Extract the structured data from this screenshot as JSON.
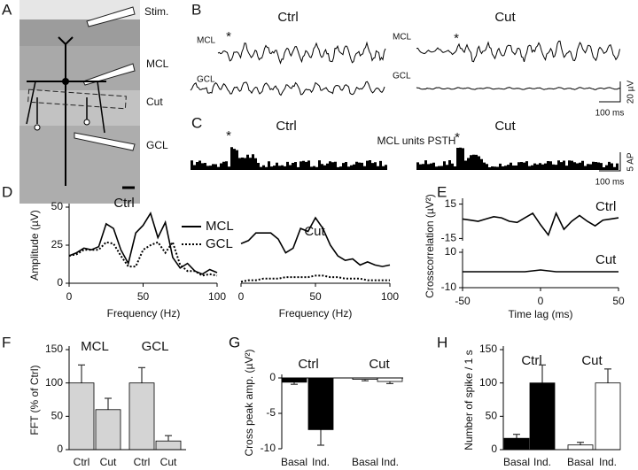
{
  "figure": {
    "panel_letters": [
      "A",
      "B",
      "C",
      "D",
      "E",
      "F",
      "G",
      "H"
    ],
    "image_labels": [
      "Stim.",
      "MCL",
      "Cut",
      "GCL"
    ],
    "b": {
      "conditions": [
        "Ctrl",
        "Cut"
      ],
      "trace_labels": [
        "MCL",
        "GCL",
        "MCL",
        "GCL"
      ],
      "asterisk": "*",
      "scale_v": "20 µV",
      "scale_t": "100 ms"
    },
    "c": {
      "conditions": [
        "Ctrl",
        "Cut"
      ],
      "title": "MCL units PSTH",
      "asterisk": "*",
      "scale_v": "5 AP",
      "scale_t": "100 ms"
    }
  },
  "chart_data": [
    {
      "type": "line",
      "title": "Ctrl",
      "x_label": "Frequency (Hz)",
      "y_label": "Amplitude (µV)",
      "x": [
        0,
        5,
        10,
        15,
        20,
        25,
        30,
        35,
        40,
        45,
        50,
        55,
        60,
        65,
        70,
        75,
        80,
        85,
        90,
        95,
        100
      ],
      "series": [
        {
          "name": "MCL",
          "color": "#000000",
          "dash": "solid",
          "values": [
            18,
            20,
            23,
            22,
            24,
            39,
            36,
            22,
            13,
            33,
            38,
            46,
            30,
            40,
            17,
            10,
            13,
            8,
            6,
            9,
            7
          ]
        },
        {
          "name": "GCL",
          "color": "#000000",
          "dash": "dotted",
          "values": [
            18,
            19,
            22,
            22,
            22,
            27,
            26,
            18,
            11,
            11,
            22,
            25,
            27,
            20,
            27,
            12,
            8,
            8,
            5,
            6,
            5
          ]
        }
      ],
      "xlim": [
        0,
        100
      ],
      "xticks": [
        0,
        50,
        100
      ],
      "ylim": [
        0,
        50
      ],
      "yticks": [
        0,
        25,
        50
      ],
      "legend": "right"
    },
    {
      "type": "line",
      "title": "Cut",
      "x_label": "Frequency (Hz)",
      "x": [
        0,
        5,
        10,
        15,
        20,
        25,
        30,
        35,
        40,
        45,
        50,
        55,
        60,
        65,
        70,
        75,
        80,
        85,
        90,
        95,
        100
      ],
      "series": [
        {
          "name": "MCL",
          "color": "#000000",
          "dash": "solid",
          "values": [
            26,
            28,
            33,
            33,
            33,
            29,
            20,
            23,
            36,
            34,
            43,
            36,
            25,
            18,
            15,
            16,
            12,
            14,
            12,
            11,
            12
          ]
        },
        {
          "name": "GCL",
          "color": "#000000",
          "dash": "dotted",
          "values": [
            1,
            2,
            2,
            3,
            3,
            3,
            4,
            4,
            4,
            4,
            5,
            5,
            4,
            4,
            3,
            3,
            3,
            2,
            2,
            2,
            2
          ]
        }
      ],
      "xlim": [
        0,
        100
      ],
      "xticks": [
        0,
        50,
        100
      ],
      "ylim": [
        0,
        50
      ]
    },
    {
      "type": "line",
      "y_label": "Crosscorrelation (µV²)",
      "x": [
        -50,
        -45,
        -40,
        -35,
        -30,
        -25,
        -20,
        -15,
        -10,
        -5,
        0,
        5,
        10,
        15,
        20,
        25,
        30,
        35,
        40,
        45,
        50
      ],
      "series": [
        {
          "name": "Ctrl",
          "color": "#000000",
          "dash": "solid",
          "values": [
            2,
            1,
            0,
            2,
            4,
            3,
            0,
            -1,
            3,
            7,
            -3,
            -12,
            7,
            -7,
            0,
            5,
            0,
            -4,
            1,
            2,
            3
          ]
        }
      ],
      "xlim": [
        -50,
        50
      ],
      "ylim": [
        -17,
        17
      ],
      "yticks": [
        15,
        -15
      ]
    },
    {
      "type": "line",
      "x_label": "Time lag (ms)",
      "x": [
        -50,
        -45,
        -40,
        -35,
        -30,
        -25,
        -20,
        -15,
        -10,
        -5,
        0,
        5,
        10,
        15,
        20,
        25,
        30,
        35,
        40,
        45,
        50
      ],
      "series": [
        {
          "name": "Cut",
          "color": "#000000",
          "dash": "solid",
          "values": [
            -1,
            -1,
            -1,
            -1,
            -1,
            -1,
            -1,
            -1,
            -1,
            -0.5,
            0,
            -0.5,
            -1,
            -1,
            -1,
            -1,
            -1,
            -1,
            -1,
            -1,
            -1
          ]
        }
      ],
      "xlim": [
        -50,
        50
      ],
      "xticks": [
        -50,
        0,
        50
      ],
      "ylim": [
        -10,
        10
      ],
      "yticks": [
        10,
        -10
      ]
    },
    {
      "type": "bar",
      "y_label": "FFT (% of Ctrl)",
      "categories": [
        "Ctrl",
        "Cut",
        "Ctrl",
        "Cut"
      ],
      "group_labels": [
        "MCL",
        "GCL"
      ],
      "values": [
        100,
        60,
        100,
        13
      ],
      "errors": [
        27,
        17,
        23,
        8
      ],
      "colors": [
        "#d4d4d4",
        "#d4d4d4",
        "#d4d4d4",
        "#d4d4d4"
      ],
      "ylim": [
        0,
        150
      ],
      "yticks": [
        0,
        50,
        100,
        150
      ]
    },
    {
      "type": "bar",
      "y_label": "Cross peak amp. (µV²)",
      "categories": [
        "Basal",
        "Ind.",
        "Basal",
        "Ind."
      ],
      "group_labels": [
        "Ctrl",
        "Cut"
      ],
      "values": [
        -0.6,
        -7.3,
        -0.2,
        -0.5
      ],
      "errors": [
        0.3,
        2.2,
        0.2,
        0.3
      ],
      "colors": [
        "#000000",
        "#000000",
        "#ffffff",
        "#ffffff"
      ],
      "ylim": [
        -10,
        0
      ],
      "yticks": [
        -10,
        -5,
        0
      ]
    },
    {
      "type": "bar",
      "y_label": "Number of spike / 1 s",
      "categories": [
        "Basal",
        "Ind.",
        "Basal",
        "Ind."
      ],
      "group_labels": [
        "Ctrl",
        "Cut"
      ],
      "values": [
        17,
        100,
        7,
        100
      ],
      "errors": [
        6,
        27,
        4,
        21
      ],
      "colors": [
        "#000000",
        "#000000",
        "#ffffff",
        "#ffffff"
      ],
      "ylim": [
        0,
        150
      ],
      "yticks": [
        0,
        50,
        100,
        150
      ]
    }
  ]
}
